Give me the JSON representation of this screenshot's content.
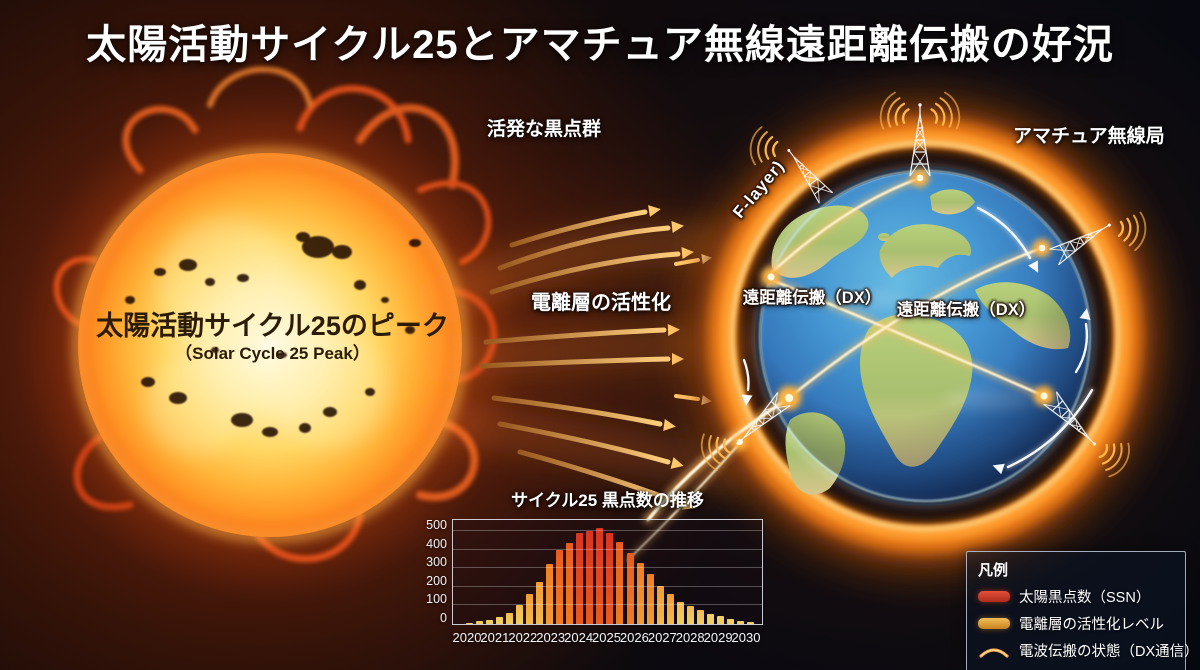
{
  "title": "太陽活動サイクル25とアマチュア無線遠距離伝搬の好況",
  "sun": {
    "label_jp": "太陽活動サイクル25のピーク",
    "label_en": "（Solar Cycle 25 Peak）"
  },
  "labels": {
    "active_sunspots": "活発な黒点群",
    "ionosphere_activation": "電離層の活性化",
    "f_layer": "F-layer)",
    "ham_station": "アマチュア無線局",
    "dx_left": "遠距離伝搬（DX）",
    "dx_right": "遠距離伝搬（DX）"
  },
  "chart_data": {
    "type": "bar",
    "title": "サイクル25 黒点数の推移",
    "xlabel": "",
    "ylabel": "",
    "x_tick_labels": [
      "2020",
      "2021",
      "2022",
      "2023",
      "2024",
      "2025",
      "2026",
      "2027",
      "2028",
      "2029",
      "2030"
    ],
    "y_ticks": [
      0,
      100,
      200,
      300,
      400,
      500
    ],
    "ylim": [
      0,
      560
    ],
    "grid": "horizontal",
    "values": [
      8,
      14,
      24,
      38,
      62,
      100,
      160,
      228,
      325,
      400,
      435,
      490,
      500,
      515,
      492,
      440,
      385,
      330,
      270,
      205,
      162,
      120,
      95,
      75,
      55,
      42,
      28,
      16,
      9
    ],
    "bar_color_scale": [
      {
        "min": 460,
        "color": "#d93420"
      },
      {
        "min": 380,
        "color": "#e85c20"
      },
      {
        "min": 250,
        "color": "#ef7d22"
      },
      {
        "min": 140,
        "color": "#f19c33"
      },
      {
        "min": 60,
        "color": "#f3ba4c"
      },
      {
        "min": 0,
        "color": "#f2cf63"
      }
    ]
  },
  "legend": {
    "heading": "凡例",
    "items": [
      {
        "swatch": "red-bar",
        "label": "太陽黒点数（SSN）",
        "color": "#cf3a26"
      },
      {
        "swatch": "orange-bar",
        "label": "電離層の活性化レベル",
        "color": "#eda83e"
      },
      {
        "swatch": "propagation-arc",
        "label": "電波伝搬の状態（DX通信）",
        "color": "#f2a23c"
      }
    ]
  },
  "colors": {
    "ionization_ring": "#ff8c1e",
    "dx_path": "#fff3cf",
    "flow_arrow": "#ffc96e",
    "sun_peak_red": "#d93420",
    "background_left": "#1e0d08",
    "background_right": "#070910"
  }
}
